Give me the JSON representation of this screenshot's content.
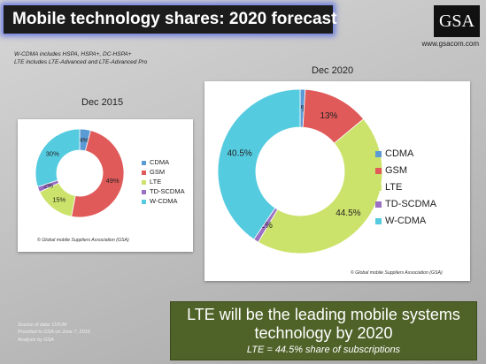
{
  "title": "Mobile technology shares: 2020 forecast",
  "logo": "GSA",
  "website": "www.gsacom.com",
  "notes": [
    "W-CDMA includes HSPA, HSPA+, DC-HSPA+",
    "LTE includes LTE-Advanced and LTE-Advanced Pro"
  ],
  "source": [
    "Source of data: OVUM",
    "Provided to GSA on June 7, 2016",
    "Analysis by GSA"
  ],
  "callout": {
    "line1": "LTE will be the leading mobile systems",
    "line2": "technology by 2020",
    "line3": "LTE = 44.5% share of subscriptions"
  },
  "colors": {
    "CDMA": "#5b9bd5",
    "GSM": "#e05a5a",
    "LTE": "#cbe36b",
    "TD-SCDMA": "#9b6fc4",
    "W-CDMA": "#55cbe0"
  },
  "chart_data": [
    {
      "type": "pie",
      "title": "Dec 2015",
      "copyright": "© Global mobile Suppliers Association (GSA)",
      "legend_position": "right",
      "categories": [
        "CDMA",
        "GSM",
        "LTE",
        "TD-SCDMA",
        "W-CDMA"
      ],
      "values": [
        4,
        49,
        15,
        2,
        30
      ],
      "labels": [
        "4%",
        "49%",
        "15%",
        "2%",
        "30%"
      ]
    },
    {
      "type": "pie",
      "title": "Dec 2020",
      "copyright": "© Global mobile Suppliers Association (GSA)",
      "legend_position": "right",
      "categories": [
        "CDMA",
        "GSM",
        "LTE",
        "TD-SCDMA",
        "W-CDMA"
      ],
      "values": [
        1,
        13,
        44.5,
        1,
        40.5
      ],
      "labels": [
        "1%",
        "13%",
        "44.5%",
        "1%",
        "40.5%"
      ]
    }
  ]
}
